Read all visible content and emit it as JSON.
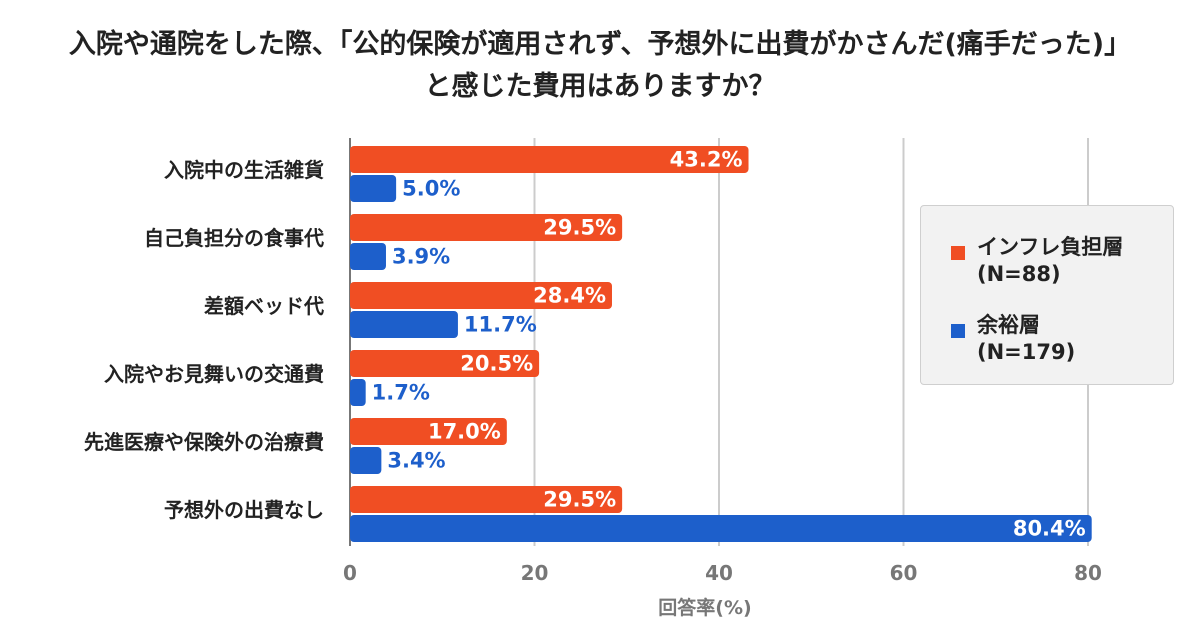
{
  "chart_data": {
    "type": "bar",
    "orientation": "horizontal",
    "title_lines": [
      "入院や通院をした際、「公的保険が適用されず、予想外に出費がかさんだ(痛手だった)」",
      "と感じた費用はありますか？"
    ],
    "xlabel": "回答率(%)",
    "xlim": [
      0,
      80
    ],
    "xticks": [
      "0",
      "20",
      "40",
      "60",
      "80"
    ],
    "grid": true,
    "legend_placement": "right",
    "categories": [
      "入院中の生活雑貨",
      "自己負担分の食事代",
      "差額ベッド代",
      "入院やお見舞いの交通費",
      "先進医療や保険外の治療費",
      "予想外の出費なし"
    ],
    "series": [
      {
        "name": "インフレ負担層",
        "name_sub": "(N=88)",
        "color": "#f04e23",
        "values": [
          43.2,
          29.5,
          28.4,
          20.5,
          17.0,
          29.5
        ],
        "labels": [
          "43.2%",
          "29.5%",
          "28.4%",
          "20.5%",
          "17.0%",
          "29.5%"
        ]
      },
      {
        "name": "余裕層",
        "name_sub": "(N=179)",
        "color": "#1d5fcb",
        "values": [
          5.0,
          3.9,
          11.7,
          1.7,
          3.4,
          80.4
        ],
        "labels": [
          "5.0%",
          "3.9%",
          "11.7%",
          "1.7%",
          "3.4%",
          "80.4%"
        ]
      }
    ]
  }
}
